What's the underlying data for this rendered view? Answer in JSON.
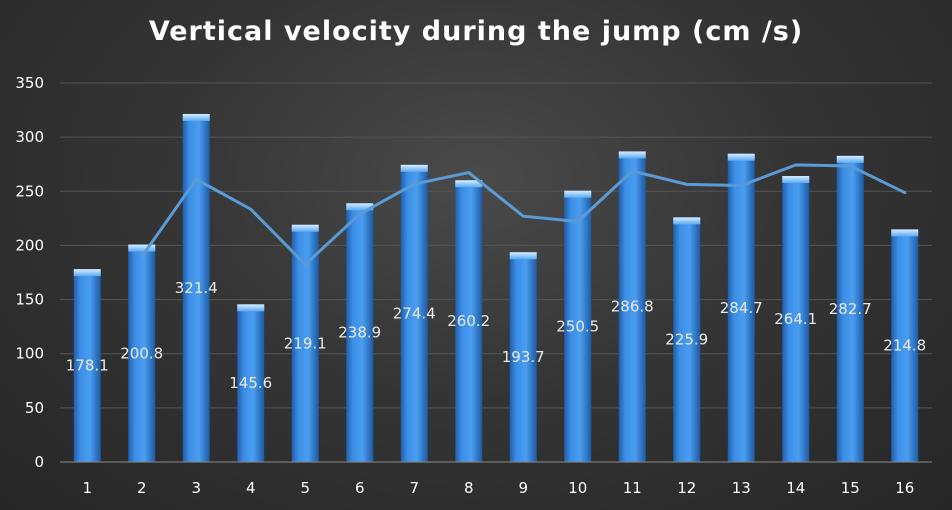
{
  "chart_data": {
    "type": "bar",
    "title": "Vertical velocity during the jump (cm /s)",
    "xlabel": "",
    "ylabel": "",
    "categories": [
      "1",
      "2",
      "3",
      "4",
      "5",
      "6",
      "7",
      "8",
      "9",
      "10",
      "11",
      "12",
      "13",
      "14",
      "15",
      "16"
    ],
    "values": [
      178.1,
      200.8,
      321.4,
      145.6,
      219.1,
      238.9,
      274.4,
      260.2,
      193.7,
      250.5,
      286.8,
      225.9,
      284.7,
      264.1,
      282.7,
      214.8
    ],
    "value_labels": [
      "178.1",
      "200.8",
      "321.4",
      "145.6",
      "219.1",
      "238.9",
      "274.4",
      "260.2",
      "193.7",
      "250.5",
      "286.8",
      "225.9",
      "284.7",
      "264.1",
      "282.7",
      "214.8"
    ],
    "trend_line": {
      "type": "line",
      "description": "unlabeled line overlay",
      "values": [
        null,
        189.5,
        261.1,
        233.5,
        182.4,
        229.0,
        256.7,
        267.3,
        227.0,
        222.1,
        268.7,
        256.4,
        255.3,
        274.4,
        273.4,
        248.8
      ]
    },
    "ylim": [
      0,
      350
    ],
    "yticks": [
      "0",
      "50",
      "100",
      "150",
      "200",
      "250",
      "300",
      "350"
    ],
    "ytick_values": [
      0,
      50,
      100,
      150,
      200,
      250,
      300,
      350
    ],
    "grid": true,
    "legend": "none",
    "colors": {
      "bar": "#3d8fe6",
      "bar_top": "#9fd0ff",
      "line": "#5b9bd5",
      "grid": "#555555",
      "text": "#ffffff"
    }
  }
}
